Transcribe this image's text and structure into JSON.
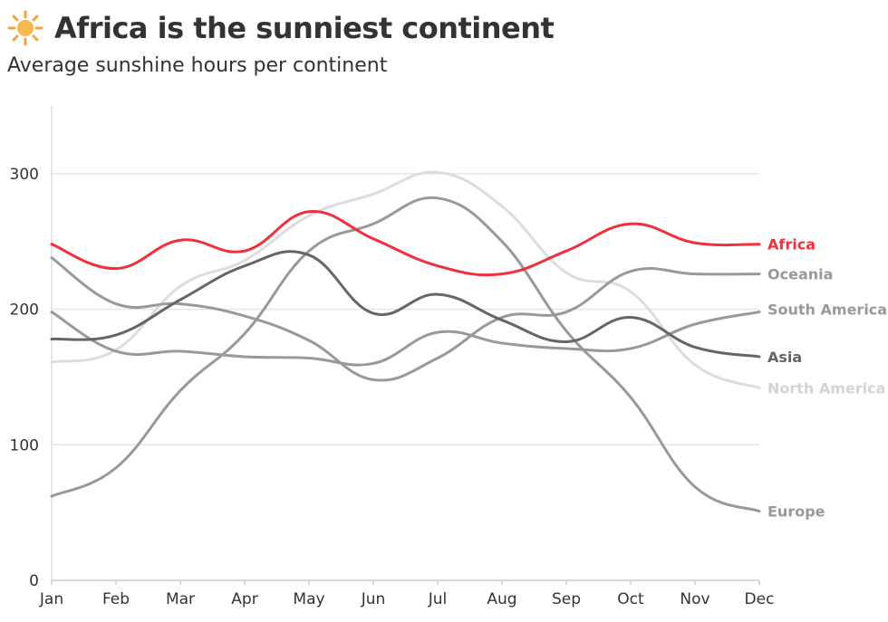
{
  "header": {
    "title": "Africa is the sunniest continent",
    "subtitle": "Average sunshine hours per continent"
  },
  "chart_data": {
    "type": "line",
    "title": "Africa is the sunniest continent",
    "subtitle": "Average sunshine hours per continent",
    "xlabel": "",
    "ylabel": "",
    "categories": [
      "Jan",
      "Feb",
      "Mar",
      "Apr",
      "May",
      "Jun",
      "Jul",
      "Aug",
      "Sep",
      "Oct",
      "Nov",
      "Dec"
    ],
    "ylim": [
      0,
      350
    ],
    "yticks": [
      0,
      100,
      200,
      300
    ],
    "grid": true,
    "legend": "direct labels at right end of lines",
    "series": [
      {
        "name": "Europe",
        "color": "#999999",
        "values": [
          62,
          83,
          140,
          182,
          243,
          263,
          282,
          250,
          184,
          135,
          69,
          51
        ]
      },
      {
        "name": "North America",
        "color": "#dddddd",
        "values": [
          161,
          170,
          217,
          236,
          269,
          285,
          301,
          276,
          227,
          213,
          159,
          142
        ]
      },
      {
        "name": "South America",
        "color": "#999999",
        "values": [
          198,
          169,
          169,
          165,
          164,
          160,
          183,
          175,
          171,
          171,
          189,
          198
        ]
      },
      {
        "name": "Oceania",
        "color": "#999999",
        "values": [
          238,
          204,
          204,
          195,
          177,
          148,
          164,
          194,
          198,
          228,
          226,
          226
        ]
      },
      {
        "name": "Asia",
        "color": "#666666",
        "values": [
          178,
          181,
          207,
          232,
          240,
          197,
          211,
          192,
          176,
          194,
          172,
          165
        ]
      },
      {
        "name": "Africa",
        "color": "#f0303c",
        "values": [
          248,
          230,
          251,
          243,
          272,
          252,
          232,
          226,
          243,
          263,
          249,
          248
        ]
      }
    ]
  }
}
